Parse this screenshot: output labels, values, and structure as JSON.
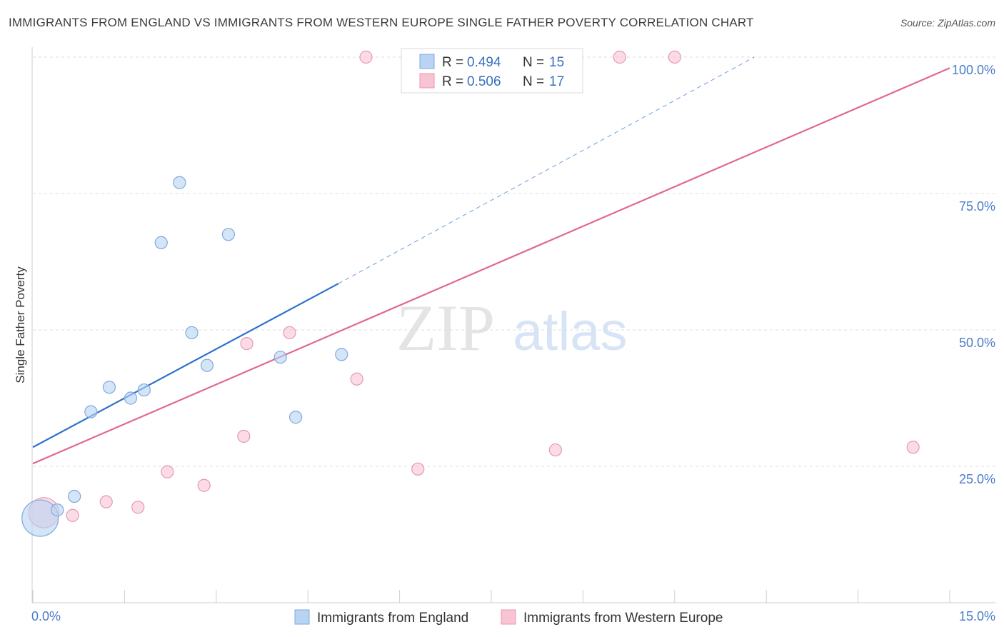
{
  "header": {
    "title": "IMMIGRANTS FROM ENGLAND VS IMMIGRANTS FROM WESTERN EUROPE SINGLE FATHER POVERTY CORRELATION CHART",
    "source": "Source: ZipAtlas.com"
  },
  "watermark": {
    "zip": "ZIP",
    "atlas": "atlas"
  },
  "legend": {
    "r_label": "R =",
    "n_label": "N =",
    "england": {
      "r": "0.494",
      "n": "15"
    },
    "western_europe": {
      "r": "0.506",
      "n": "17"
    }
  },
  "colors": {
    "england_fill": "#b9d3f3",
    "england_stroke": "#7fa8dd",
    "england_line": "#2e72cc",
    "western_fill": "#f8c4d3",
    "western_stroke": "#e897b1",
    "western_line": "#e06892",
    "tick_text": "#4a7cc9",
    "grid": "#dddddd"
  },
  "chart_data": {
    "type": "scatter",
    "title": "IMMIGRANTS FROM ENGLAND VS IMMIGRANTS FROM WESTERN EUROPE SINGLE FATHER POVERTY CORRELATION CHART",
    "xlabel": "",
    "ylabel": "Single Father Poverty",
    "xlim": [
      0,
      15
    ],
    "ylim": [
      0,
      105
    ],
    "x_tick_labels": [
      "0.0%",
      "15.0%"
    ],
    "y_ticks": [
      25,
      50,
      75,
      100
    ],
    "y_tick_labels": [
      "25.0%",
      "50.0%",
      "75.0%",
      "100.0%"
    ],
    "grid": true,
    "legend_position": "top-center",
    "series": [
      {
        "name": "Immigrants from England",
        "points": [
          [
            0.12,
            15.5,
            3
          ],
          [
            0.4,
            17.0,
            1
          ],
          [
            0.68,
            19.5,
            1
          ],
          [
            0.95,
            35.0,
            1
          ],
          [
            1.25,
            39.5,
            1
          ],
          [
            1.6,
            37.5,
            1
          ],
          [
            1.82,
            39.0,
            1
          ],
          [
            2.1,
            66.0,
            1
          ],
          [
            2.4,
            77.0,
            1
          ],
          [
            2.6,
            49.5,
            1
          ],
          [
            2.85,
            43.5,
            1
          ],
          [
            3.2,
            67.5,
            1
          ],
          [
            4.05,
            45.0,
            1
          ],
          [
            4.3,
            34.0,
            1
          ],
          [
            5.05,
            45.5,
            1
          ]
        ],
        "trend": {
          "x0": 0,
          "y0": 28.5,
          "x1": 5.0,
          "y1": 58.5,
          "dash_to_x": 11.8,
          "dash_to_y": 100
        }
      },
      {
        "name": "Immigrants from Western Europe",
        "points": [
          [
            0.18,
            16.5,
            2.5
          ],
          [
            0.65,
            16.0,
            1
          ],
          [
            1.2,
            18.5,
            1
          ],
          [
            1.72,
            17.5,
            1
          ],
          [
            2.2,
            24.0,
            1
          ],
          [
            2.8,
            21.5,
            1
          ],
          [
            3.45,
            30.5,
            1
          ],
          [
            3.5,
            47.5,
            1
          ],
          [
            4.2,
            49.5,
            1
          ],
          [
            5.3,
            41.0,
            1
          ],
          [
            6.3,
            24.5,
            1
          ],
          [
            8.55,
            28.0,
            1
          ],
          [
            5.45,
            100,
            1
          ],
          [
            6.3,
            100,
            1
          ],
          [
            9.6,
            100,
            1
          ],
          [
            10.5,
            100,
            1
          ],
          [
            14.4,
            28.5,
            1
          ]
        ],
        "trend": {
          "x0": 0,
          "y0": 25.5,
          "x1": 15.0,
          "y1": 98.0
        }
      }
    ]
  }
}
